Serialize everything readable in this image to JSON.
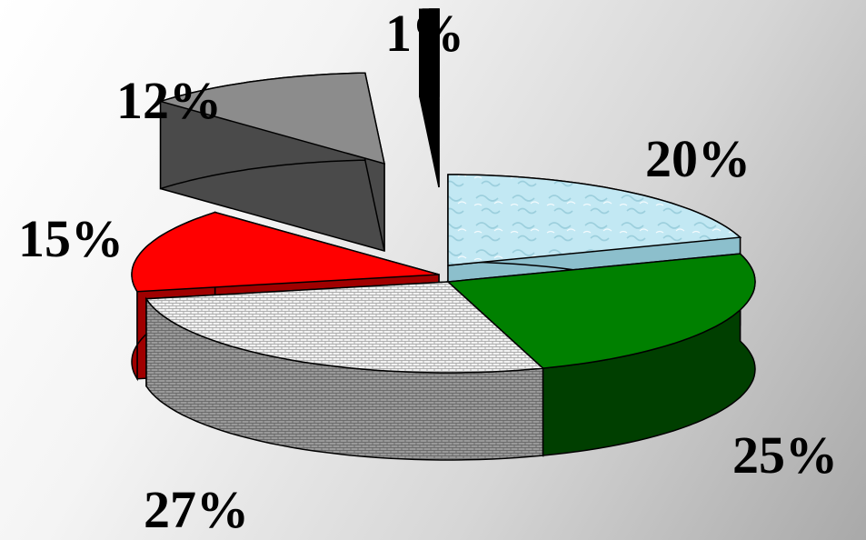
{
  "chart_data": {
    "type": "pie",
    "style": "3d-exploded",
    "slices": [
      {
        "label": "20%",
        "value": 20,
        "color": "#bfe7f2",
        "side_color": "#8cbfcc",
        "pattern": "water"
      },
      {
        "label": "25%",
        "value": 25,
        "color": "#008000",
        "side_color": "#003f00",
        "pattern": "none"
      },
      {
        "label": "27%",
        "value": 27,
        "color": "#e8e8e8",
        "side_color": "#888888",
        "pattern": "brick"
      },
      {
        "label": "15%",
        "value": 15,
        "color": "#ff0000",
        "side_color": "#a00000",
        "pattern": "none"
      },
      {
        "label": "12%",
        "value": 12,
        "color": "#8c8c8c",
        "side_color": "#4a4a4a",
        "pattern": "none"
      },
      {
        "label": "1%",
        "value": 1,
        "color": "#000000",
        "side_color": "#000000",
        "pattern": "none"
      }
    ],
    "legend": "none",
    "grid": false
  }
}
